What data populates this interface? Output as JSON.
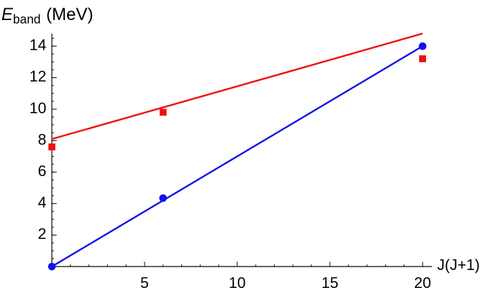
{
  "chart_data": {
    "type": "scatter",
    "y_label": {
      "symbol": "E",
      "subscript": "band",
      "unit": "(MeV)"
    },
    "x_label": "J(J+1)",
    "xlim": [
      0,
      20.5
    ],
    "ylim": [
      0,
      14.8
    ],
    "xticks": [
      5,
      10,
      15,
      20
    ],
    "yticks": [
      2,
      4,
      6,
      8,
      10,
      12,
      14
    ],
    "xminor": 1,
    "yminor": 0.5,
    "series": [
      {
        "kind": "line",
        "color": "#ee1111",
        "x": [
          0,
          20
        ],
        "values": [
          8.1,
          14.8
        ]
      },
      {
        "kind": "line",
        "color": "#1111ee",
        "x": [
          0,
          20
        ],
        "values": [
          0,
          14
        ]
      },
      {
        "kind": "points",
        "marker": "square",
        "color": "#ee1111",
        "x": [
          0,
          6,
          20
        ],
        "values": [
          7.6,
          9.8,
          13.2
        ]
      },
      {
        "kind": "points",
        "marker": "circle",
        "color": "#1111ee",
        "x": [
          0,
          6,
          20
        ],
        "values": [
          0,
          4.35,
          14
        ]
      }
    ]
  }
}
